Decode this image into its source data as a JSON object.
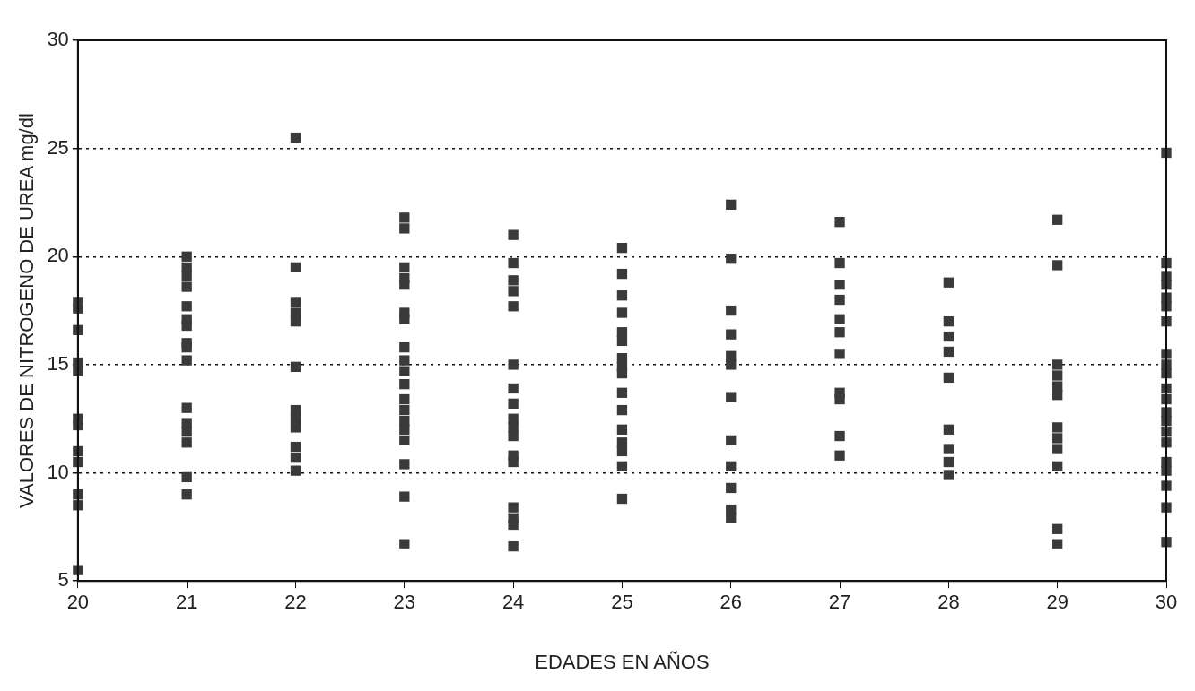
{
  "chart_data": {
    "type": "scatter",
    "xlabel": "EDADES EN AÑOS",
    "ylabel": "VALORES DE NITROGENO DE UREA mg/dl",
    "x": [
      20,
      20,
      20,
      20,
      20,
      20,
      20,
      20,
      20,
      20,
      20,
      20,
      21,
      21,
      21,
      21,
      21,
      21,
      21,
      21,
      21,
      21,
      21,
      21,
      21,
      21,
      21,
      21,
      22,
      22,
      22,
      22,
      22,
      22,
      22,
      22,
      22,
      22,
      22,
      22,
      23,
      23,
      23,
      23,
      23,
      23,
      23,
      23,
      23,
      23,
      23,
      23,
      23,
      23,
      23,
      23,
      23,
      23,
      23,
      24,
      24,
      24,
      24,
      24,
      24,
      24,
      24,
      24,
      24,
      24,
      24,
      24,
      24,
      24,
      24,
      24,
      25,
      25,
      25,
      25,
      25,
      25,
      25,
      25,
      25,
      25,
      25,
      25,
      25,
      25,
      25,
      25,
      26,
      26,
      26,
      26,
      26,
      26,
      26,
      26,
      26,
      26,
      26,
      26,
      27,
      27,
      27,
      27,
      27,
      27,
      27,
      27,
      27,
      27,
      27,
      28,
      28,
      28,
      28,
      28,
      28,
      28,
      28,
      28,
      29,
      29,
      29,
      29,
      29,
      29,
      29,
      29,
      29,
      29,
      29,
      29,
      30,
      30,
      30,
      30,
      30,
      30,
      30,
      30,
      30,
      30,
      30,
      30,
      30,
      30,
      30,
      30,
      30,
      30,
      30,
      30,
      30
    ],
    "values": [
      17.9,
      17.6,
      16.6,
      15.1,
      14.7,
      12.5,
      12.2,
      11.0,
      10.5,
      9.0,
      8.5,
      5.5,
      20.0,
      19.5,
      19.1,
      18.6,
      17.7,
      17.1,
      16.8,
      16.0,
      15.8,
      15.2,
      13.0,
      12.3,
      11.9,
      11.4,
      9.8,
      9.0,
      25.5,
      19.5,
      17.9,
      17.4,
      17.0,
      14.9,
      12.9,
      12.5,
      12.1,
      11.2,
      10.7,
      10.1,
      21.8,
      21.3,
      19.5,
      19.0,
      18.7,
      17.4,
      17.1,
      15.8,
      15.2,
      14.7,
      14.1,
      13.4,
      12.9,
      12.4,
      12.0,
      11.5,
      10.4,
      8.9,
      6.7,
      21.0,
      19.7,
      18.9,
      18.4,
      17.7,
      15.0,
      13.9,
      13.2,
      12.5,
      12.1,
      11.7,
      10.8,
      10.5,
      8.4,
      7.9,
      7.6,
      6.6,
      20.4,
      19.2,
      18.2,
      17.4,
      16.5,
      16.1,
      15.3,
      14.9,
      14.6,
      13.7,
      12.9,
      12.0,
      11.4,
      11.0,
      10.3,
      8.8,
      22.4,
      19.9,
      17.5,
      16.4,
      15.4,
      15.0,
      13.5,
      11.5,
      10.3,
      9.3,
      8.3,
      7.9,
      21.6,
      19.7,
      18.7,
      18.0,
      17.1,
      16.5,
      15.5,
      13.7,
      13.4,
      11.7,
      10.8,
      18.8,
      17.0,
      16.3,
      15.6,
      14.4,
      12.0,
      11.1,
      10.5,
      9.9,
      21.7,
      19.6,
      15.0,
      14.5,
      14.0,
      13.6,
      12.1,
      11.6,
      11.1,
      10.3,
      7.4,
      6.7,
      24.8,
      19.7,
      19.1,
      18.7,
      18.1,
      17.7,
      17.0,
      15.5,
      15.0,
      14.6,
      13.9,
      13.4,
      12.8,
      12.4,
      11.9,
      11.4,
      10.5,
      10.1,
      9.4,
      8.4,
      6.8
    ],
    "color": "#3a3a3a",
    "marker": "square",
    "xlim": [
      20,
      30
    ],
    "xticks": [
      20,
      21,
      22,
      23,
      24,
      25,
      26,
      27,
      28,
      29,
      30
    ],
    "ylim": [
      5,
      30
    ],
    "yticks": [
      5,
      10,
      15,
      20,
      25,
      30
    ],
    "grid": "y"
  }
}
